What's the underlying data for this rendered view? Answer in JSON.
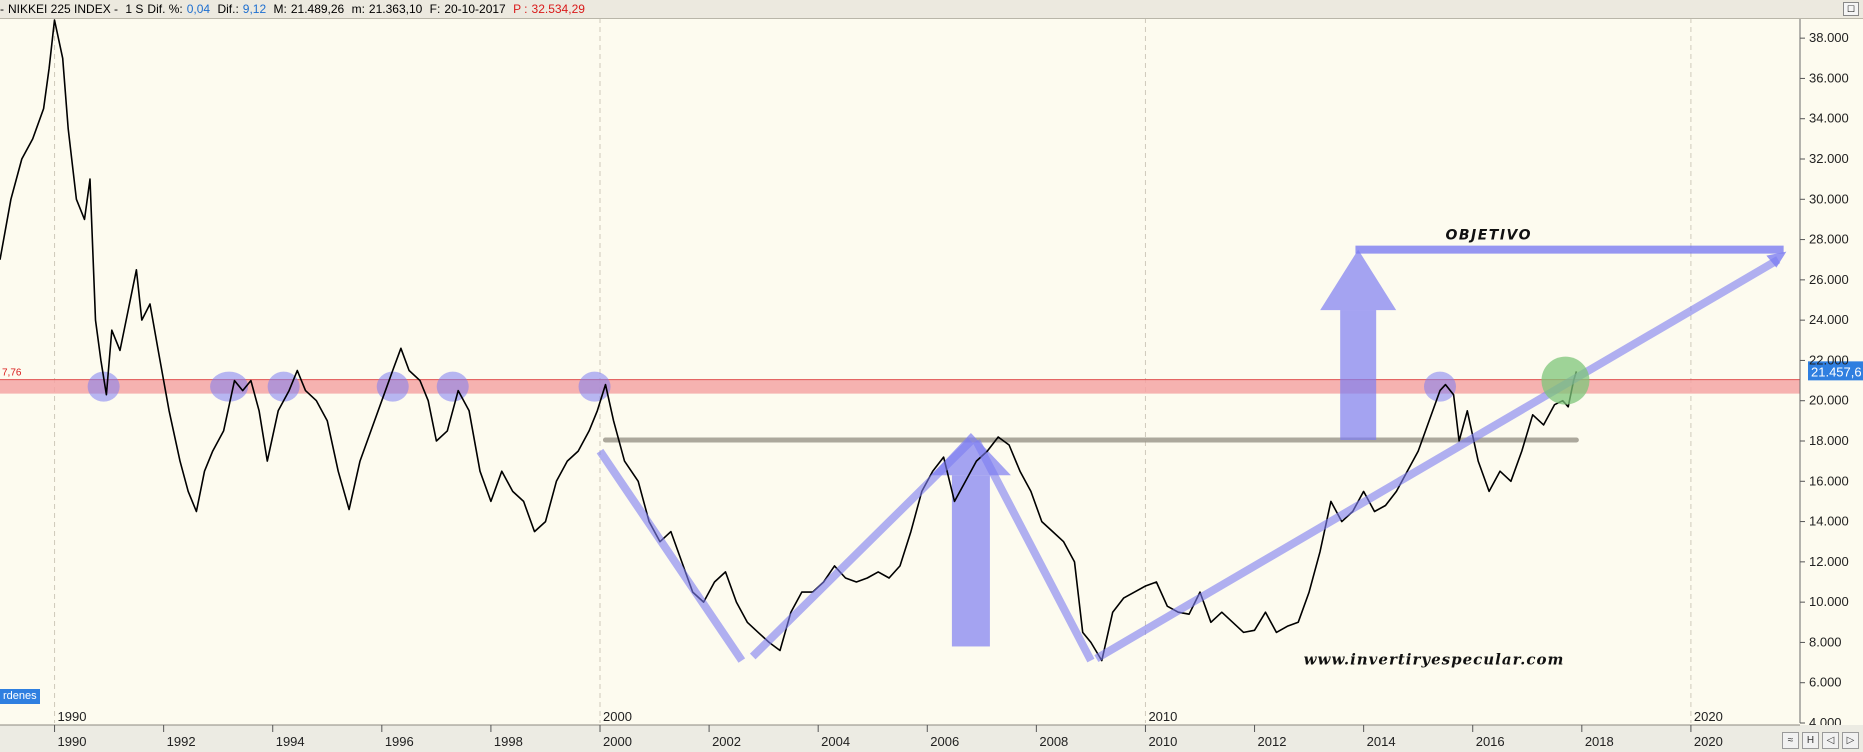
{
  "header": {
    "prefix": "-",
    "symbol": "NIKKEI 225 INDEX -",
    "timeframe": "1 S",
    "dif_pct_label": "Dif. %:",
    "dif_pct_value": "0,04",
    "dif_label": "Dif.:",
    "dif_value": "9,12",
    "m_label": "M:",
    "m_value": "21.489,26",
    "m2_label": "m:",
    "m2_value": "21.363,10",
    "f_label": "F:",
    "f_value": "20-10-2017",
    "p_label": "P :",
    "p_value": "32.534,29"
  },
  "legend_tag": "rdenes",
  "window_button": "☐",
  "bottom_tools": [
    "≈",
    "H",
    "◁",
    "▷"
  ],
  "colors": {
    "background": "#fdfbef",
    "price_line": "#000000",
    "resistance_band": "#f5a5a5",
    "annotation": "#7d7ef2",
    "neckline": "#9e9a8e",
    "target_circle": "#7dc67a",
    "last_price_badge": "#2f7fe0"
  },
  "chart_data": {
    "type": "line",
    "yaxis_side": "right",
    "ylim": [
      4000,
      39000
    ],
    "yticks": [
      "38.000",
      "36.000",
      "34.000",
      "32.000",
      "30.000",
      "28.000",
      "26.000",
      "24.000",
      "22.000",
      "20.000",
      "18.000",
      "16.000",
      "14.000",
      "12.000",
      "10.000",
      "8.000",
      "6.000",
      "4.000"
    ],
    "ytick_values": [
      38000,
      36000,
      34000,
      32000,
      30000,
      28000,
      26000,
      24000,
      22000,
      20000,
      18000,
      16000,
      14000,
      12000,
      10000,
      8000,
      6000,
      4000
    ],
    "xlim": [
      1989.0,
      2022.0
    ],
    "xticks": [
      "1990",
      "1992",
      "1994",
      "1996",
      "1998",
      "2000",
      "2002",
      "2004",
      "2006",
      "2008",
      "2010",
      "2012",
      "2014",
      "2016",
      "2018",
      "2020"
    ],
    "xtick_values": [
      1990,
      1992,
      1994,
      1996,
      1998,
      2000,
      2002,
      2004,
      2006,
      2008,
      2010,
      2012,
      2014,
      2016,
      2018,
      2020
    ],
    "decade_labels": [
      "1990",
      "2000",
      "2010",
      "2020"
    ],
    "decade_values": [
      1990,
      2000,
      2010,
      2020
    ],
    "series": [
      {
        "points": [
          [
            1989.0,
            27000
          ],
          [
            1989.2,
            30000
          ],
          [
            1989.4,
            32000
          ],
          [
            1989.6,
            33000
          ],
          [
            1989.8,
            34500
          ],
          [
            1989.9,
            36500
          ],
          [
            1990.0,
            38900
          ],
          [
            1990.15,
            37000
          ],
          [
            1990.25,
            33500
          ],
          [
            1990.4,
            30000
          ],
          [
            1990.55,
            29000
          ],
          [
            1990.65,
            31000
          ],
          [
            1990.75,
            24000
          ],
          [
            1990.85,
            22000
          ],
          [
            1990.95,
            20300
          ],
          [
            1991.05,
            23500
          ],
          [
            1991.2,
            22500
          ],
          [
            1991.35,
            24500
          ],
          [
            1991.5,
            26500
          ],
          [
            1991.6,
            24000
          ],
          [
            1991.75,
            24800
          ],
          [
            1991.9,
            22500
          ],
          [
            1992.1,
            19500
          ],
          [
            1992.3,
            17000
          ],
          [
            1992.45,
            15500
          ],
          [
            1992.6,
            14500
          ],
          [
            1992.75,
            16500
          ],
          [
            1992.9,
            17500
          ],
          [
            1993.1,
            18500
          ],
          [
            1993.3,
            21000
          ],
          [
            1993.45,
            20500
          ],
          [
            1993.6,
            21000
          ],
          [
            1993.75,
            19500
          ],
          [
            1993.9,
            17000
          ],
          [
            1994.1,
            19500
          ],
          [
            1994.3,
            20500
          ],
          [
            1994.45,
            21500
          ],
          [
            1994.6,
            20500
          ],
          [
            1994.8,
            20000
          ],
          [
            1995.0,
            19000
          ],
          [
            1995.2,
            16500
          ],
          [
            1995.4,
            14600
          ],
          [
            1995.6,
            17000
          ],
          [
            1995.8,
            18500
          ],
          [
            1996.0,
            20000
          ],
          [
            1996.2,
            21500
          ],
          [
            1996.35,
            22600
          ],
          [
            1996.5,
            21500
          ],
          [
            1996.7,
            21000
          ],
          [
            1996.85,
            20000
          ],
          [
            1997.0,
            18000
          ],
          [
            1997.2,
            18500
          ],
          [
            1997.4,
            20500
          ],
          [
            1997.6,
            19500
          ],
          [
            1997.8,
            16500
          ],
          [
            1998.0,
            15000
          ],
          [
            1998.2,
            16500
          ],
          [
            1998.4,
            15500
          ],
          [
            1998.6,
            15000
          ],
          [
            1998.8,
            13500
          ],
          [
            1999.0,
            14000
          ],
          [
            1999.2,
            16000
          ],
          [
            1999.4,
            17000
          ],
          [
            1999.6,
            17500
          ],
          [
            1999.8,
            18500
          ],
          [
            1999.95,
            19500
          ],
          [
            2000.1,
            20800
          ],
          [
            2000.25,
            19000
          ],
          [
            2000.45,
            17000
          ],
          [
            2000.7,
            16000
          ],
          [
            2000.9,
            14000
          ],
          [
            2001.1,
            13000
          ],
          [
            2001.3,
            13500
          ],
          [
            2001.5,
            12000
          ],
          [
            2001.7,
            10500
          ],
          [
            2001.9,
            10000
          ],
          [
            2002.1,
            11000
          ],
          [
            2002.3,
            11500
          ],
          [
            2002.5,
            10000
          ],
          [
            2002.7,
            9000
          ],
          [
            2002.9,
            8500
          ],
          [
            2003.1,
            8000
          ],
          [
            2003.3,
            7600
          ],
          [
            2003.5,
            9500
          ],
          [
            2003.7,
            10500
          ],
          [
            2003.9,
            10500
          ],
          [
            2004.1,
            11000
          ],
          [
            2004.3,
            11800
          ],
          [
            2004.5,
            11200
          ],
          [
            2004.7,
            11000
          ],
          [
            2004.9,
            11200
          ],
          [
            2005.1,
            11500
          ],
          [
            2005.3,
            11200
          ],
          [
            2005.5,
            11800
          ],
          [
            2005.7,
            13500
          ],
          [
            2005.9,
            15500
          ],
          [
            2006.1,
            16500
          ],
          [
            2006.3,
            17200
          ],
          [
            2006.5,
            15000
          ],
          [
            2006.7,
            16000
          ],
          [
            2006.9,
            17000
          ],
          [
            2007.1,
            17500
          ],
          [
            2007.3,
            18200
          ],
          [
            2007.5,
            17800
          ],
          [
            2007.7,
            16500
          ],
          [
            2007.9,
            15500
          ],
          [
            2008.1,
            14000
          ],
          [
            2008.3,
            13500
          ],
          [
            2008.5,
            13000
          ],
          [
            2008.7,
            12000
          ],
          [
            2008.85,
            8500
          ],
          [
            2009.0,
            8000
          ],
          [
            2009.2,
            7100
          ],
          [
            2009.4,
            9500
          ],
          [
            2009.6,
            10200
          ],
          [
            2009.8,
            10500
          ],
          [
            2010.0,
            10800
          ],
          [
            2010.2,
            11000
          ],
          [
            2010.4,
            9800
          ],
          [
            2010.6,
            9500
          ],
          [
            2010.8,
            9400
          ],
          [
            2011.0,
            10500
          ],
          [
            2011.2,
            9000
          ],
          [
            2011.4,
            9500
          ],
          [
            2011.6,
            9000
          ],
          [
            2011.8,
            8500
          ],
          [
            2012.0,
            8600
          ],
          [
            2012.2,
            9500
          ],
          [
            2012.4,
            8500
          ],
          [
            2012.6,
            8800
          ],
          [
            2012.8,
            9000
          ],
          [
            2013.0,
            10500
          ],
          [
            2013.2,
            12500
          ],
          [
            2013.4,
            15000
          ],
          [
            2013.6,
            14000
          ],
          [
            2013.8,
            14500
          ],
          [
            2014.0,
            15500
          ],
          [
            2014.2,
            14500
          ],
          [
            2014.4,
            14800
          ],
          [
            2014.6,
            15500
          ],
          [
            2014.8,
            16500
          ],
          [
            2015.0,
            17500
          ],
          [
            2015.2,
            19000
          ],
          [
            2015.4,
            20500
          ],
          [
            2015.5,
            20800
          ],
          [
            2015.65,
            20300
          ],
          [
            2015.75,
            18000
          ],
          [
            2015.9,
            19500
          ],
          [
            2016.1,
            17000
          ],
          [
            2016.3,
            15500
          ],
          [
            2016.5,
            16500
          ],
          [
            2016.7,
            16000
          ],
          [
            2016.9,
            17500
          ],
          [
            2017.1,
            19300
          ],
          [
            2017.3,
            18800
          ],
          [
            2017.5,
            19800
          ],
          [
            2017.65,
            20000
          ],
          [
            2017.75,
            19700
          ],
          [
            2017.85,
            21000
          ],
          [
            2017.9,
            21457
          ]
        ]
      }
    ],
    "last_price_label": "21.457,6",
    "left_level_label": "7,76",
    "annotations": {
      "resistance_level": 20700,
      "neckline_level": 18050,
      "target_level": 27500,
      "target_label": "OBJETIVO",
      "watermark": "www.invertiryespecular.com"
    }
  }
}
